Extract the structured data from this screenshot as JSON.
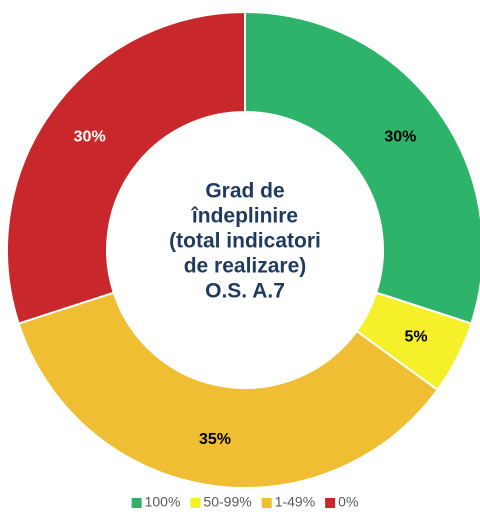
{
  "chart_data": {
    "type": "donut",
    "title": [
      "Grad de",
      "îndeplinire",
      "(total indicatori",
      "de realizare)",
      "O.S. A.7"
    ],
    "categories": [
      "100%",
      "50-99%",
      "1-49%",
      "0%"
    ],
    "values": [
      30,
      5,
      35,
      30
    ],
    "value_labels": [
      "30%",
      "5%",
      "35%",
      "30%"
    ],
    "colors": [
      "#2eb36a",
      "#f5f02a",
      "#efbe33",
      "#c8282c"
    ],
    "legend": "bottom"
  }
}
